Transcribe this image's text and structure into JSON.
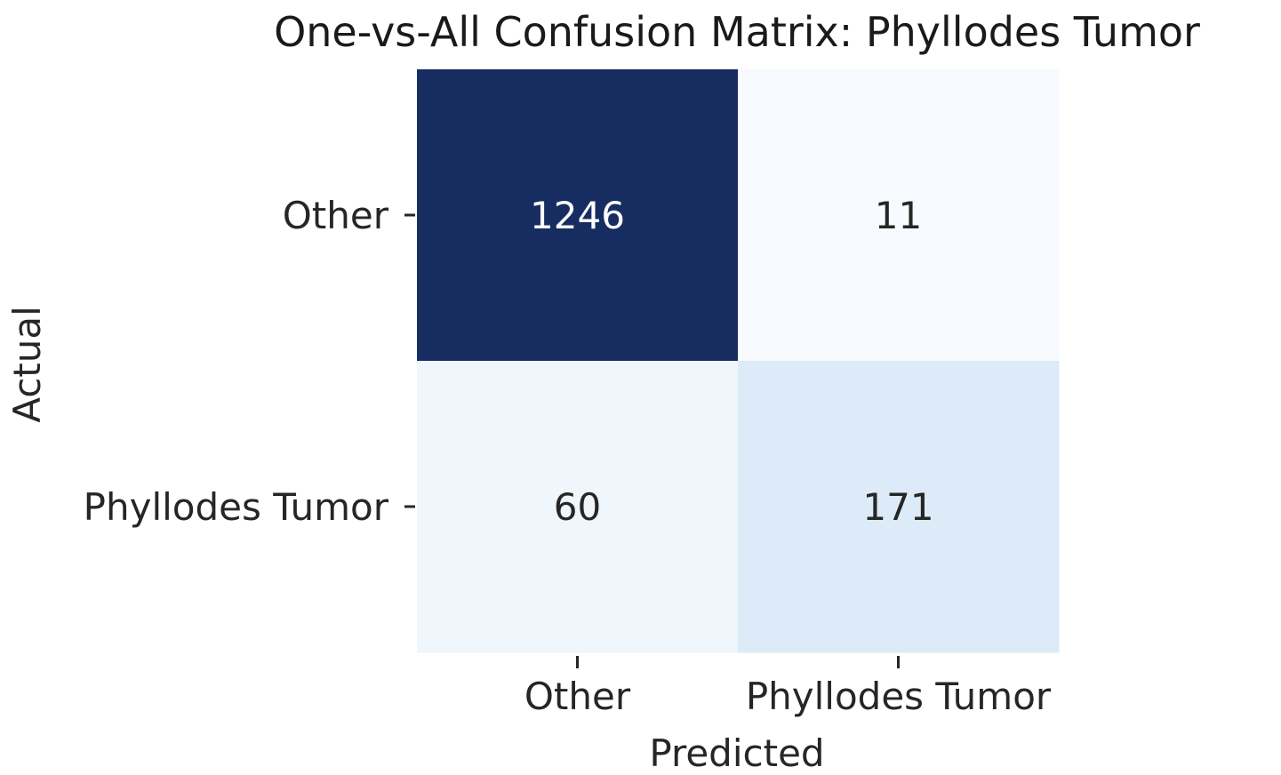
{
  "chart_data": {
    "type": "heatmap",
    "title": "One-vs-All Confusion Matrix: Phyllodes Tumor",
    "xlabel": "Predicted",
    "ylabel": "Actual",
    "x_categories": [
      "Other",
      "Phyllodes Tumor"
    ],
    "y_categories": [
      "Other",
      "Phyllodes Tumor"
    ],
    "values": [
      [
        1246,
        11
      ],
      [
        60,
        171
      ]
    ],
    "colormap": "Blues",
    "colorbar": false,
    "annotations": true
  }
}
